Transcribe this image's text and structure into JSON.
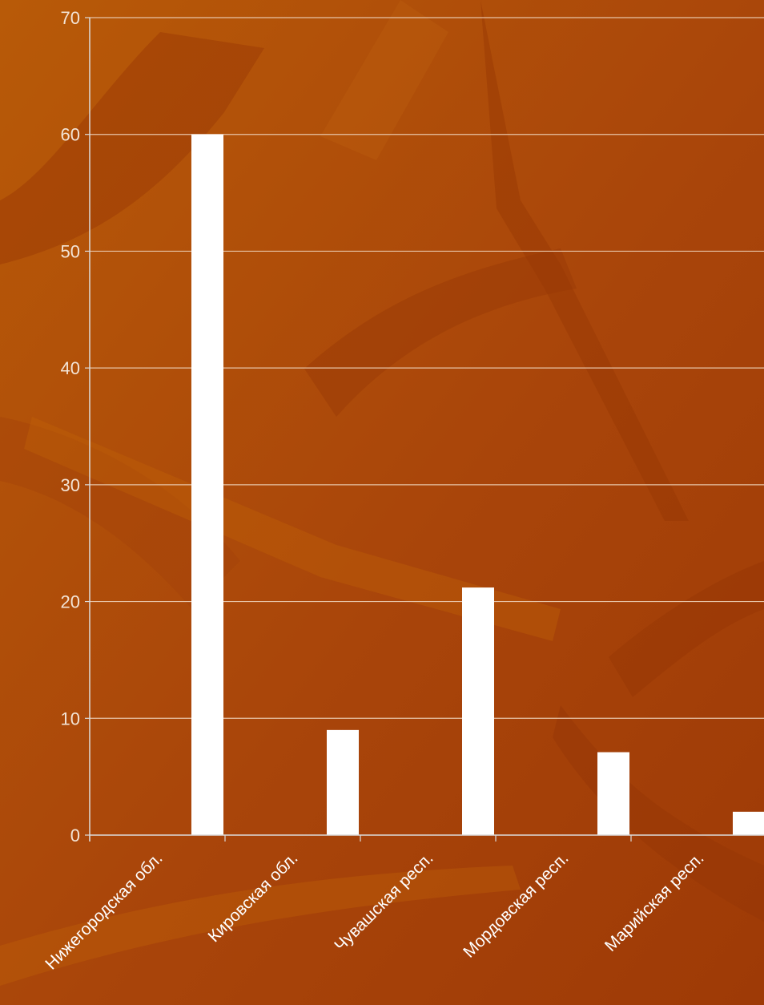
{
  "chart_data": {
    "type": "bar",
    "title": "",
    "xlabel": "",
    "ylabel": "",
    "categories": [
      "Нижегородская обл.",
      "Кировская обл.",
      "Чувашская респ.",
      "Мордовская респ.",
      "Марийская респ."
    ],
    "values": [
      60,
      9,
      21.2,
      7.1,
      2
    ],
    "ylim": [
      0,
      70
    ],
    "yticks": [
      0,
      10,
      20,
      30,
      40,
      50,
      60,
      70
    ],
    "grid": true,
    "legend": "none",
    "colors": {
      "bar": "#ffffff",
      "grid": "#e7c4a8",
      "axis": "#dcdcdc",
      "background": "#b04a06"
    }
  }
}
